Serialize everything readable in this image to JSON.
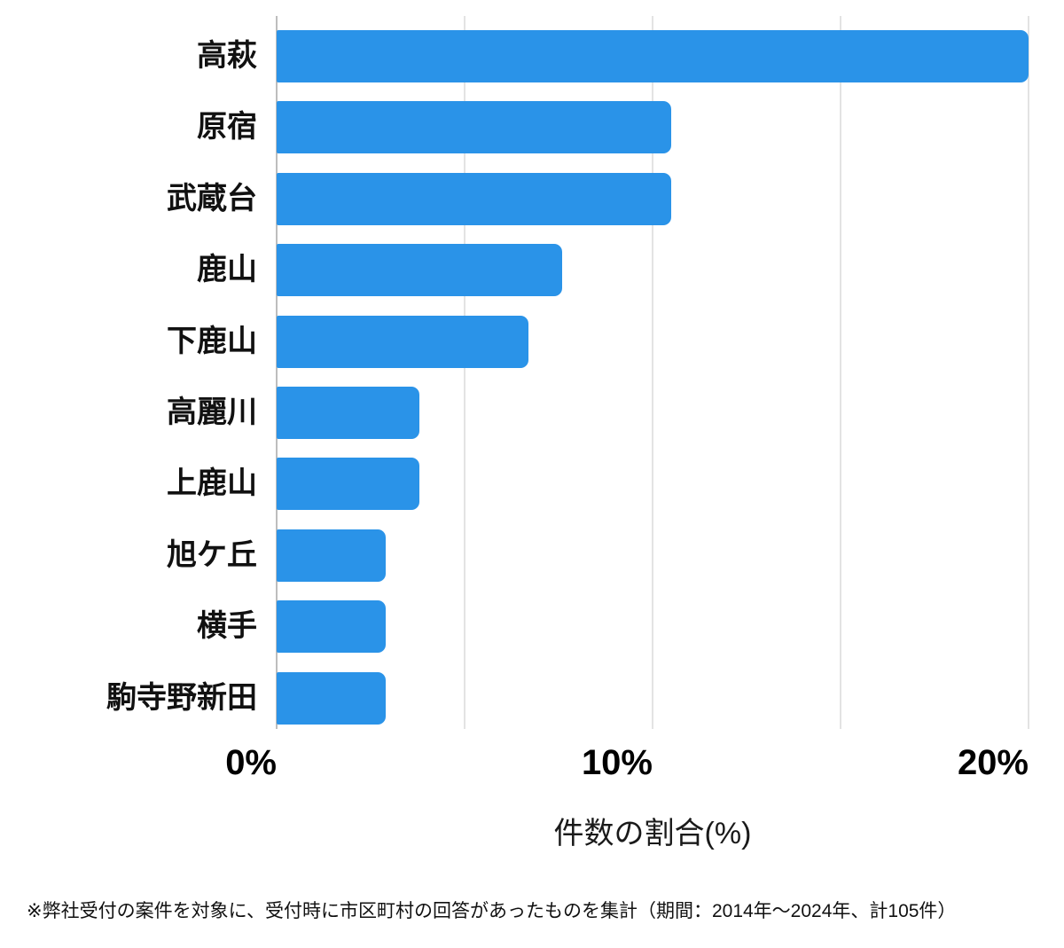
{
  "page": {
    "background": "#ffffff",
    "text_color": "#111111"
  },
  "chart_data": {
    "type": "bar",
    "orientation": "horizontal",
    "title": "",
    "categories": [
      "高萩",
      "原宿",
      "武蔵台",
      "鹿山",
      "下鹿山",
      "高麗川",
      "上鹿山",
      "旭ケ丘",
      "横手",
      "駒寺野新田"
    ],
    "values": [
      20.0,
      10.5,
      10.5,
      7.6,
      6.7,
      3.8,
      3.8,
      2.9,
      2.9,
      2.9
    ],
    "xlabel": "件数の割合(%)",
    "xlim": [
      0,
      20
    ],
    "xticks": [
      {
        "value": 0,
        "label": "0%"
      },
      {
        "value": 10,
        "label": "10%"
      },
      {
        "value": 20,
        "label": "20%"
      }
    ],
    "gridlines_at": [
      0,
      5,
      10,
      15,
      20
    ],
    "grid": true,
    "legend": false,
    "bar_color": "#2a93e8",
    "gridline_color": "#e3e3e3",
    "zero_line_color": "#bdbdbd",
    "footnote": "※弊社受付の案件を対象に、受付時に市区町村の回答があったものを集計（期間：2014年〜2024年、計105件）"
  }
}
